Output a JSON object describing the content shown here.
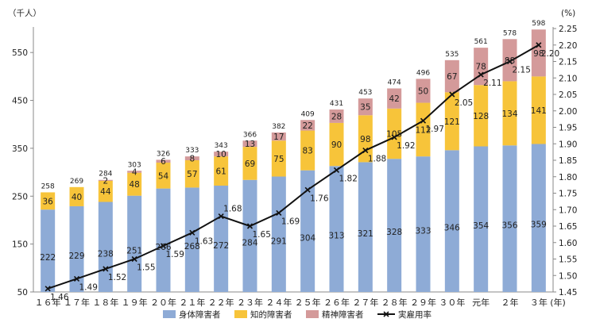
{
  "chart_data": {
    "type": "bar",
    "stacked": true,
    "categories": [
      "１６年",
      "１７年",
      "１８年",
      "１９年",
      "２０年",
      "２１年",
      "２２年",
      "２３年",
      "２４年",
      "２５年",
      "２６年",
      "２７年",
      "２８年",
      "２９年",
      "３０年",
      "元年",
      "２年",
      "３年"
    ],
    "x_unit": "(年)",
    "y_left_unit": "（千人）",
    "y_right_unit": "(%)",
    "y_left_ticks": [
      "50",
      "150",
      "250",
      "350",
      "450",
      "550"
    ],
    "y_right_ticks": [
      "1.45",
      "1.50",
      "1.55",
      "1.60",
      "1.65",
      "1.70",
      "1.75",
      "1.80",
      "1.85",
      "1.90",
      "1.95",
      "2.00",
      "2.05",
      "2.10",
      "2.15",
      "2.20",
      "2.25"
    ],
    "ylim_left": [
      50,
      600
    ],
    "ylim_right": [
      1.45,
      2.25
    ],
    "series": [
      {
        "name": "身体障害者",
        "color": "#8eabd6",
        "values": [
          222,
          229,
          238,
          251,
          266,
          268,
          272,
          284,
          291,
          304,
          313,
          321,
          328,
          333,
          346,
          354,
          356,
          359
        ],
        "labels": [
          "222",
          "229",
          "238",
          "251",
          "266",
          "268",
          "272",
          "284",
          "291",
          "304",
          "313",
          "321",
          "328",
          "333",
          "346",
          "354",
          "356",
          "359"
        ]
      },
      {
        "name": "知的障害者",
        "color": "#f7c43a",
        "values": [
          36,
          40,
          44,
          48,
          54,
          57,
          61,
          69,
          75,
          83,
          90,
          98,
          105,
          112,
          121,
          128,
          134,
          141
        ],
        "labels": [
          "36",
          "40",
          "44",
          "48",
          "54",
          "57",
          "61",
          "69",
          "75",
          "83",
          "90",
          "98",
          "105",
          "112",
          "121",
          "128",
          "134",
          "141"
        ]
      },
      {
        "name": "精神障害者",
        "color": "#d49a9a",
        "values": [
          0,
          0,
          2,
          4,
          6,
          8,
          10,
          13,
          17,
          22,
          28,
          35,
          42,
          50,
          67,
          78,
          88,
          98
        ],
        "labels": [
          "",
          "",
          "2",
          "4",
          "6",
          "8",
          "10",
          "13",
          "17",
          "22",
          "28",
          "35",
          "42",
          "50",
          "67",
          "78",
          "88",
          "98"
        ]
      }
    ],
    "totals": [
      "258",
      "269",
      "284",
      "303",
      "326",
      "333",
      "343",
      "366",
      "382",
      "409",
      "431",
      "453",
      "474",
      "496",
      "535",
      "561",
      "578",
      "598"
    ],
    "line": {
      "name": "実雇用率",
      "color": "#111111",
      "values": [
        1.46,
        1.49,
        1.52,
        1.55,
        1.59,
        1.63,
        1.68,
        1.65,
        1.69,
        1.76,
        1.82,
        1.88,
        1.92,
        1.97,
        2.05,
        2.11,
        2.15,
        2.2
      ],
      "labels": [
        "1.46",
        "1.49",
        "1.52",
        "1.55",
        "1.59",
        "1.63",
        "1.68",
        "1.65",
        "1.69",
        "1.76",
        "1.82",
        "1.88",
        "1.92",
        "1.97",
        "2.05",
        "2.11",
        "2.15",
        "2.20"
      ]
    },
    "legend_position": "bottom",
    "grid": false
  }
}
